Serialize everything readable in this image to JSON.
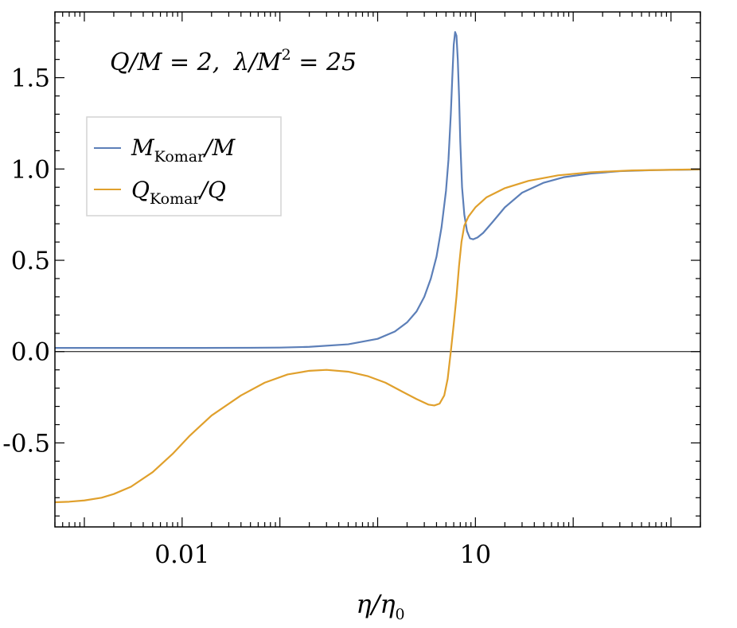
{
  "chart_data": {
    "type": "line",
    "annotation": {
      "q_over_m": "Q/M = 2,",
      "lambda_prefix": "λ/M",
      "lambda_exp": "2",
      "lambda_suffix": " = 25"
    },
    "xlabel": {
      "main": "η/η",
      "sub": "0"
    },
    "x_scale": "log",
    "xlim": [
      0.0005,
      2000
    ],
    "ylim": [
      -0.96,
      1.86
    ],
    "x_tick_labels": [
      {
        "value": 0.01,
        "label": "0.01"
      },
      {
        "value": 10,
        "label": "10"
      }
    ],
    "y_tick_labels": [
      {
        "value": 1.5,
        "label": "1.5"
      },
      {
        "value": 1.0,
        "label": "1.0"
      },
      {
        "value": 0.5,
        "label": "0.5"
      },
      {
        "value": 0.0,
        "label": "0.0"
      },
      {
        "value": -0.5,
        "label": "-0.5"
      }
    ],
    "zero_line": true,
    "legend_position": "upper-left",
    "series": [
      {
        "name": {
          "main": "M",
          "sub": "Komar",
          "tail": "/M"
        },
        "color": "#5c7fb8",
        "points": [
          [
            0.0005,
            0.02
          ],
          [
            0.001,
            0.02
          ],
          [
            0.01,
            0.02
          ],
          [
            0.05,
            0.021
          ],
          [
            0.1,
            0.022
          ],
          [
            0.2,
            0.026
          ],
          [
            0.5,
            0.04
          ],
          [
            1.0,
            0.07
          ],
          [
            1.5,
            0.11
          ],
          [
            2.0,
            0.16
          ],
          [
            2.5,
            0.22
          ],
          [
            3.0,
            0.3
          ],
          [
            3.5,
            0.4
          ],
          [
            4.0,
            0.52
          ],
          [
            4.5,
            0.68
          ],
          [
            5.0,
            0.88
          ],
          [
            5.3,
            1.05
          ],
          [
            5.6,
            1.3
          ],
          [
            5.8,
            1.5
          ],
          [
            6.0,
            1.68
          ],
          [
            6.2,
            1.75
          ],
          [
            6.4,
            1.73
          ],
          [
            6.6,
            1.6
          ],
          [
            6.8,
            1.4
          ],
          [
            7.0,
            1.15
          ],
          [
            7.3,
            0.9
          ],
          [
            7.7,
            0.75
          ],
          [
            8.2,
            0.66
          ],
          [
            8.8,
            0.62
          ],
          [
            9.5,
            0.615
          ],
          [
            10.5,
            0.625
          ],
          [
            12,
            0.65
          ],
          [
            15,
            0.71
          ],
          [
            20,
            0.79
          ],
          [
            30,
            0.87
          ],
          [
            50,
            0.925
          ],
          [
            80,
            0.955
          ],
          [
            150,
            0.975
          ],
          [
            300,
            0.988
          ],
          [
            700,
            0.994
          ],
          [
            2000,
            0.997
          ]
        ]
      },
      {
        "name": {
          "main": "Q",
          "sub": "Komar",
          "tail": "/Q"
        },
        "color": "#e0a02c",
        "points": [
          [
            0.0005,
            -0.825
          ],
          [
            0.0007,
            -0.822
          ],
          [
            0.001,
            -0.815
          ],
          [
            0.0015,
            -0.8
          ],
          [
            0.002,
            -0.78
          ],
          [
            0.003,
            -0.74
          ],
          [
            0.005,
            -0.66
          ],
          [
            0.008,
            -0.56
          ],
          [
            0.012,
            -0.46
          ],
          [
            0.02,
            -0.35
          ],
          [
            0.04,
            -0.24
          ],
          [
            0.07,
            -0.17
          ],
          [
            0.12,
            -0.125
          ],
          [
            0.2,
            -0.105
          ],
          [
            0.3,
            -0.1
          ],
          [
            0.5,
            -0.11
          ],
          [
            0.8,
            -0.135
          ],
          [
            1.2,
            -0.17
          ],
          [
            1.8,
            -0.22
          ],
          [
            2.5,
            -0.26
          ],
          [
            3.3,
            -0.29
          ],
          [
            3.8,
            -0.295
          ],
          [
            4.3,
            -0.285
          ],
          [
            4.8,
            -0.24
          ],
          [
            5.2,
            -0.15
          ],
          [
            5.6,
            0.0
          ],
          [
            6.0,
            0.15
          ],
          [
            6.4,
            0.3
          ],
          [
            6.8,
            0.47
          ],
          [
            7.2,
            0.6
          ],
          [
            7.7,
            0.69
          ],
          [
            8.5,
            0.74
          ],
          [
            10,
            0.79
          ],
          [
            13,
            0.845
          ],
          [
            20,
            0.895
          ],
          [
            35,
            0.935
          ],
          [
            70,
            0.965
          ],
          [
            150,
            0.982
          ],
          [
            400,
            0.992
          ],
          [
            2000,
            0.998
          ]
        ]
      }
    ]
  }
}
